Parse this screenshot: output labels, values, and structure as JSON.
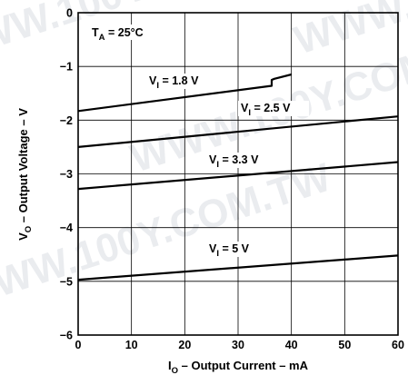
{
  "chart_data": {
    "type": "line",
    "xlabel": {
      "main": "I",
      "sub": "O",
      "rest": " – Output Current – mA"
    },
    "ylabel": {
      "main": "V",
      "sub": "O",
      "rest": " – Output Voltage – V"
    },
    "xlim": [
      0,
      60
    ],
    "ylim": [
      -6,
      0
    ],
    "x_ticks": [
      "0",
      "10",
      "20",
      "30",
      "40",
      "50",
      "60"
    ],
    "y_ticks": [
      "0",
      "−1",
      "−2",
      "−3",
      "−4",
      "−5",
      "−6"
    ],
    "grid": true,
    "annotation": {
      "main": "T",
      "sub": "A",
      "rest": " = 25°C"
    },
    "series": [
      {
        "name": {
          "main": "V",
          "sub": "I",
          "rest": " = 1.8 V"
        },
        "x": [
          0,
          36.3,
          36.3,
          36.8,
          40
        ],
        "y": [
          -1.83,
          -1.36,
          -1.25,
          -1.23,
          -1.15
        ]
      },
      {
        "name": {
          "main": "V",
          "sub": "I",
          "rest": " = 2.5 V"
        },
        "x": [
          0,
          60
        ],
        "y": [
          -2.5,
          -1.93
        ]
      },
      {
        "name": {
          "main": "V",
          "sub": "I",
          "rest": " = 3.3 V"
        },
        "x": [
          0,
          60
        ],
        "y": [
          -3.28,
          -2.78
        ]
      },
      {
        "name": {
          "main": "V",
          "sub": "I",
          "rest": " = 5 V"
        },
        "x": [
          0,
          60
        ],
        "y": [
          -4.97,
          -4.52
        ]
      }
    ]
  },
  "watermark": [
    "WWW.100Y.COM.TW",
    "WWW.100Y.COM.TW",
    "WWW.100Y.COM.TW",
    "WWW.100Y.COM.TW"
  ]
}
